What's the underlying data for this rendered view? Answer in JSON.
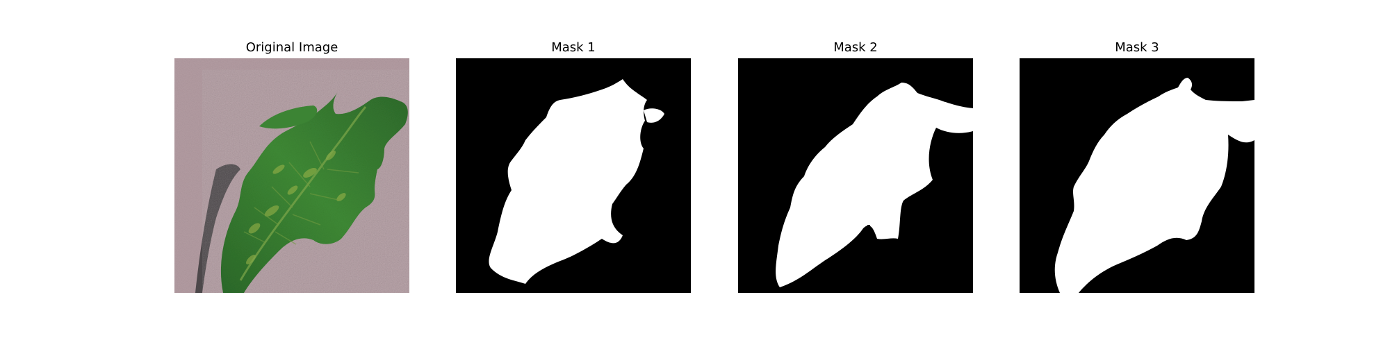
{
  "figure": {
    "panels": [
      {
        "title": "Original Image",
        "content": "leaf-photo"
      },
      {
        "title": "Mask 1",
        "content": "binary-mask"
      },
      {
        "title": "Mask 2",
        "content": "binary-mask"
      },
      {
        "title": "Mask 3",
        "content": "binary-mask"
      }
    ],
    "colors": {
      "background": "#b49ea3",
      "leaf_dark": "#2f6b2c",
      "leaf_light": "#5e9a3c",
      "mask_bg": "#000000",
      "mask_fg": "#ffffff"
    }
  }
}
